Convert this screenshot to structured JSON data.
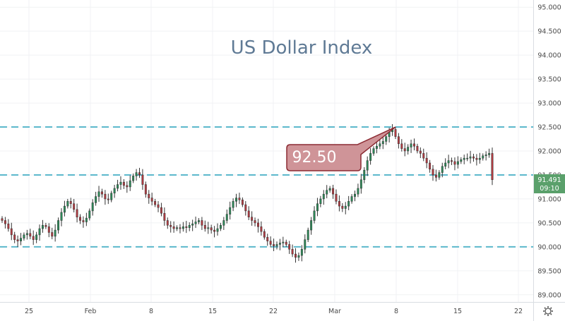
{
  "chart_data": {
    "type": "candlestick",
    "title": "US Dollar Index",
    "xlabel": "",
    "ylabel": "",
    "ylim": [
      88.85,
      95.15
    ],
    "y_ticks": [
      "95.000",
      "94.500",
      "94.000",
      "93.500",
      "93.000",
      "92.500",
      "92.000",
      "91.500",
      "91.000",
      "90.500",
      "90.000",
      "89.500",
      "89.000"
    ],
    "x_tick_labels": [
      "25",
      "Feb",
      "8",
      "15",
      "22",
      "Mar",
      "8",
      "15",
      "22"
    ],
    "grid": true,
    "horizontal_levels": [
      92.5,
      91.5,
      90.0
    ],
    "callout": {
      "text": "92.50",
      "value": 92.5
    },
    "last_price": {
      "value": "91.491",
      "time": "09:10"
    },
    "series": [
      {
        "values": [
          90.55,
          90.48,
          90.38,
          90.25,
          90.15,
          90.12,
          90.18,
          90.25,
          90.28,
          90.22,
          90.15,
          90.25,
          90.38,
          90.45,
          90.42,
          90.3,
          90.22,
          90.35,
          90.55,
          90.72,
          90.85,
          90.95,
          90.9,
          90.78,
          90.62,
          90.55,
          90.52,
          90.6,
          90.75,
          90.92,
          91.05,
          91.15,
          91.1,
          91.0,
          90.98,
          91.12,
          91.22,
          91.3,
          91.35,
          91.28,
          91.25,
          91.38,
          91.48,
          91.55,
          91.5,
          91.3,
          91.1,
          91.02,
          90.95,
          90.88,
          90.82,
          90.7,
          90.55,
          90.45,
          90.42,
          90.38,
          90.4,
          90.38,
          90.42,
          90.4,
          90.45,
          90.48,
          90.52,
          90.55,
          90.45,
          90.38,
          90.4,
          90.35,
          90.32,
          90.38,
          90.45,
          90.55,
          90.68,
          90.82,
          90.95,
          91.02,
          90.98,
          90.88,
          90.75,
          90.62,
          90.55,
          90.5,
          90.42,
          90.32,
          90.2,
          90.12,
          90.05,
          90.02,
          90.05,
          90.08,
          90.1,
          90.05,
          89.95,
          89.85,
          89.78,
          89.82,
          89.95,
          90.15,
          90.35,
          90.55,
          90.75,
          90.9,
          91.0,
          91.1,
          91.18,
          91.22,
          91.1,
          90.95,
          90.85,
          90.8,
          90.85,
          90.95,
          91.05,
          91.1,
          91.22,
          91.4,
          91.6,
          91.8,
          91.95,
          92.05,
          92.1,
          92.15,
          92.2,
          92.3,
          92.4,
          92.45,
          92.3,
          92.15,
          92.05,
          92.0,
          92.08,
          92.15,
          92.1,
          92.0,
          91.95,
          91.85,
          91.75,
          91.62,
          91.5,
          91.45,
          91.55,
          91.68,
          91.75,
          91.8,
          91.78,
          91.72,
          91.78,
          91.82,
          91.85,
          91.85,
          91.88,
          91.85,
          91.82,
          91.85,
          91.9,
          91.92,
          91.95,
          91.4
        ]
      }
    ]
  }
}
